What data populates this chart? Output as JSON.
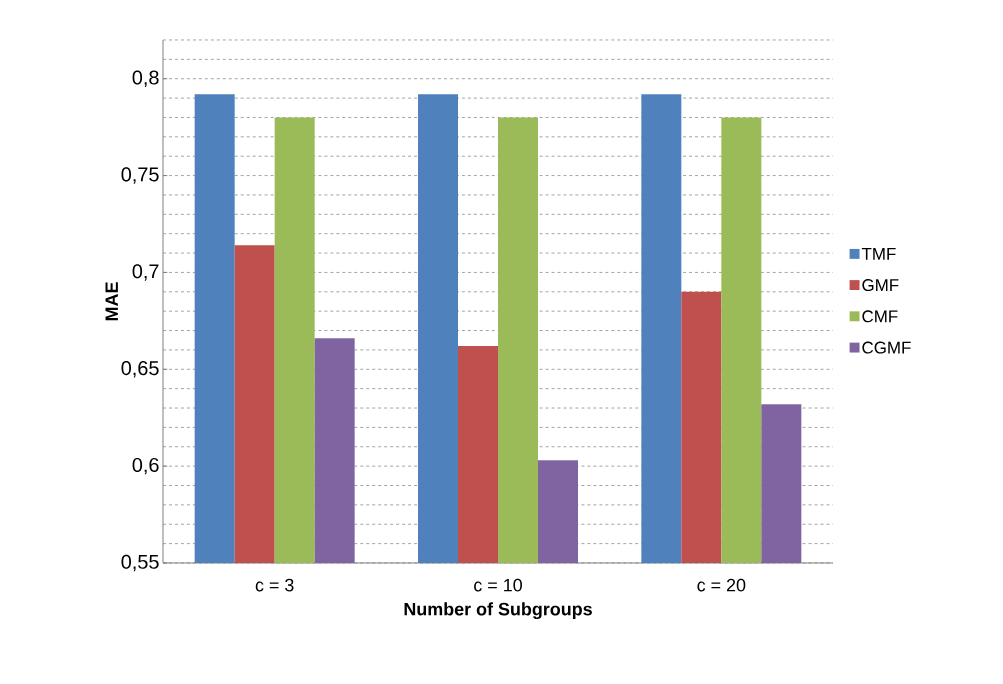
{
  "chart_data": {
    "type": "bar",
    "xlabel": "Number of Subgroups",
    "ylabel": "MAE",
    "categories": [
      "c = 3",
      "c = 10",
      "c = 20"
    ],
    "series": [
      {
        "name": "TMF",
        "color": "#4f81bd",
        "values": [
          0.792,
          0.792,
          0.792
        ]
      },
      {
        "name": "GMF",
        "color": "#c0504d",
        "values": [
          0.714,
          0.662,
          0.69
        ]
      },
      {
        "name": "CMF",
        "color": "#9bbb59",
        "values": [
          0.78,
          0.78,
          0.78
        ]
      },
      {
        "name": "CGMF",
        "color": "#8064a2",
        "values": [
          0.666,
          0.603,
          0.632
        ]
      }
    ],
    "ylim": [
      0.55,
      0.82
    ],
    "yticks": [
      {
        "value": 0.55,
        "label": "0,55"
      },
      {
        "value": 0.56,
        "label": null
      },
      {
        "value": 0.57,
        "label": null
      },
      {
        "value": 0.58,
        "label": null
      },
      {
        "value": 0.59,
        "label": null
      },
      {
        "value": 0.6,
        "label": "0,6"
      },
      {
        "value": 0.61,
        "label": null
      },
      {
        "value": 0.62,
        "label": null
      },
      {
        "value": 0.63,
        "label": null
      },
      {
        "value": 0.64,
        "label": null
      },
      {
        "value": 0.65,
        "label": "0,65"
      },
      {
        "value": 0.66,
        "label": null
      },
      {
        "value": 0.67,
        "label": null
      },
      {
        "value": 0.68,
        "label": null
      },
      {
        "value": 0.69,
        "label": null
      },
      {
        "value": 0.7,
        "label": "0,7"
      },
      {
        "value": 0.71,
        "label": null
      },
      {
        "value": 0.72,
        "label": null
      },
      {
        "value": 0.73,
        "label": null
      },
      {
        "value": 0.74,
        "label": null
      },
      {
        "value": 0.75,
        "label": "0,75"
      },
      {
        "value": 0.76,
        "label": null
      },
      {
        "value": 0.77,
        "label": null
      },
      {
        "value": 0.78,
        "label": null
      },
      {
        "value": 0.79,
        "label": null
      },
      {
        "value": 0.8,
        "label": "0,8"
      },
      {
        "value": 0.81,
        "label": null
      },
      {
        "value": 0.82,
        "label": null
      }
    ],
    "grid": true,
    "legend": "right"
  }
}
